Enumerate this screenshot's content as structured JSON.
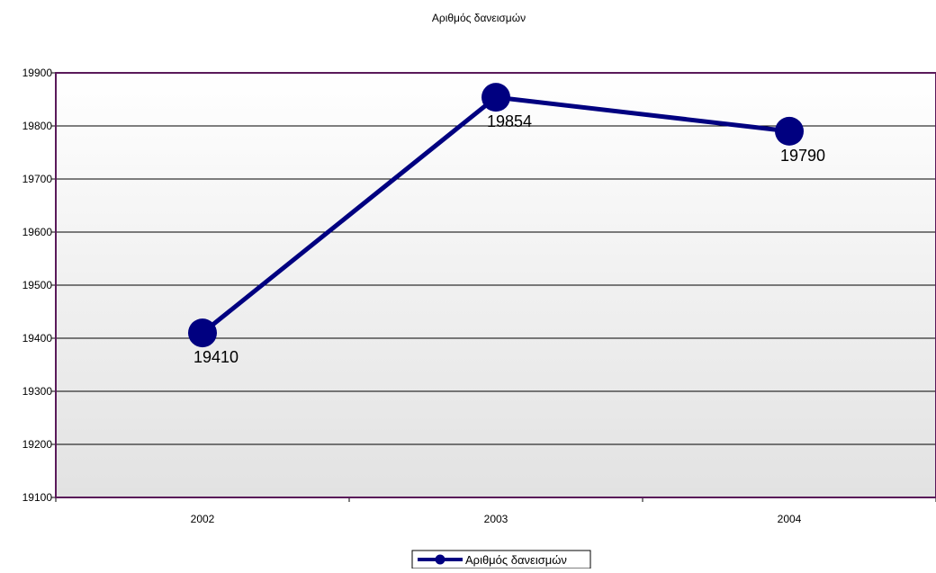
{
  "chart_data": {
    "type": "line",
    "title": "Αριθμός δανεισμών",
    "categories": [
      "2002",
      "2003",
      "2004"
    ],
    "series": [
      {
        "name": "Αριθμός δανεισμών",
        "values": [
          19410,
          19854,
          19790
        ]
      }
    ],
    "ylim": [
      19100,
      19900
    ],
    "yticks": [
      19100,
      19200,
      19300,
      19400,
      19500,
      19600,
      19700,
      19800,
      19900
    ],
    "ytick_labels": [
      "19100",
      "19200",
      "19300",
      "19400",
      "19500",
      "19600",
      "19700",
      "19800",
      "19900"
    ],
    "data_labels": [
      "19410",
      "19854",
      "19790"
    ],
    "grid": true,
    "legend_position": "bottom",
    "colors": {
      "line": "#000080",
      "marker": "#000080",
      "plot_border": "#5a1a5a",
      "grid": "#000000",
      "plot_bg_top": "#ffffff",
      "plot_bg_bottom": "#e2e2e2"
    }
  }
}
